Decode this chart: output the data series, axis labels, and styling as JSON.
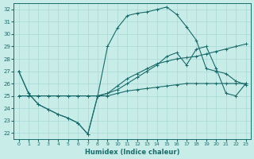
{
  "xlabel": "Humidex (Indice chaleur)",
  "xlim": [
    -0.5,
    23.5
  ],
  "ylim": [
    21.5,
    32.5
  ],
  "yticks": [
    22,
    23,
    24,
    25,
    26,
    27,
    28,
    29,
    30,
    31,
    32
  ],
  "xticks": [
    0,
    1,
    2,
    3,
    4,
    5,
    6,
    7,
    8,
    9,
    10,
    11,
    12,
    13,
    14,
    15,
    16,
    17,
    18,
    19,
    20,
    21,
    22,
    23
  ],
  "bg_color": "#c8ece8",
  "grid_color": "#a8d8d4",
  "line_color": "#1a6b6b",
  "line1_x": [
    0,
    1,
    2,
    3,
    4,
    5,
    6,
    7,
    8,
    9,
    10,
    11,
    12,
    13,
    14,
    15,
    16,
    17,
    18,
    19,
    20,
    21,
    22,
    23
  ],
  "line1_y": [
    25.0,
    25.0,
    25.0,
    25.0,
    25.0,
    25.0,
    25.0,
    25.0,
    25.0,
    25.0,
    25.2,
    25.4,
    25.5,
    25.6,
    25.7,
    25.8,
    25.9,
    26.0,
    26.0,
    26.0,
    26.0,
    26.0,
    26.0,
    26.0
  ],
  "line2_x": [
    0,
    1,
    2,
    3,
    4,
    5,
    6,
    7,
    8,
    9,
    10,
    11,
    12,
    13,
    14,
    15,
    16,
    17,
    18,
    19,
    20,
    21,
    22,
    23
  ],
  "line2_y": [
    25.0,
    25.0,
    25.0,
    25.0,
    25.0,
    25.0,
    25.0,
    25.0,
    25.0,
    25.2,
    25.8,
    26.4,
    26.8,
    27.2,
    27.6,
    27.8,
    28.0,
    28.1,
    28.2,
    28.4,
    28.6,
    28.8,
    29.0,
    29.2
  ],
  "line3_x": [
    0,
    1,
    2,
    3,
    4,
    5,
    6,
    7,
    8,
    9,
    10,
    11,
    12,
    13,
    14,
    15,
    16,
    17,
    18,
    19,
    20,
    21,
    22,
    23
  ],
  "line3_y": [
    27.0,
    25.2,
    24.3,
    23.9,
    23.5,
    23.2,
    22.8,
    21.9,
    25.0,
    29.0,
    30.5,
    31.5,
    31.7,
    31.8,
    32.0,
    32.2,
    31.6,
    30.6,
    29.5,
    27.2,
    27.0,
    26.8,
    26.2,
    25.9
  ],
  "line4_x": [
    0,
    1,
    2,
    3,
    4,
    5,
    6,
    7,
    8,
    9,
    10,
    11,
    12,
    13,
    14,
    15,
    16,
    17,
    18,
    19,
    20,
    21,
    22,
    23
  ],
  "line4_y": [
    27.0,
    25.2,
    24.3,
    23.9,
    23.5,
    23.2,
    22.8,
    21.9,
    25.0,
    25.2,
    25.5,
    26.0,
    26.5,
    27.0,
    27.5,
    28.2,
    28.5,
    27.5,
    28.8,
    29.0,
    27.2,
    25.2,
    25.0,
    26.0
  ]
}
